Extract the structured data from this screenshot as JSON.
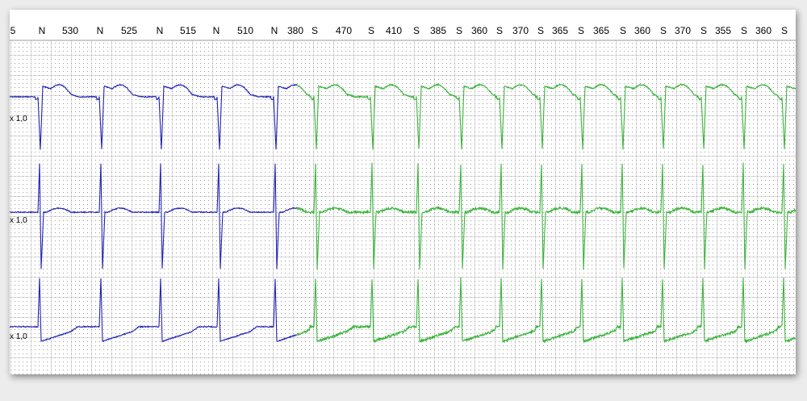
{
  "beat_labels": [
    "5",
    "N",
    "530",
    "N",
    "525",
    "N",
    "515",
    "N",
    "510",
    "N",
    "380",
    "S",
    "470",
    "S",
    "410",
    "S",
    "385",
    "S",
    "360",
    "S",
    "370",
    "S",
    "365",
    "S",
    "365",
    "S",
    "360",
    "S",
    "370",
    "S",
    "355",
    "S",
    "360",
    "S"
  ],
  "channel_gains": [
    "x 1,0",
    "x 1,0",
    "x 1,0"
  ]
}
